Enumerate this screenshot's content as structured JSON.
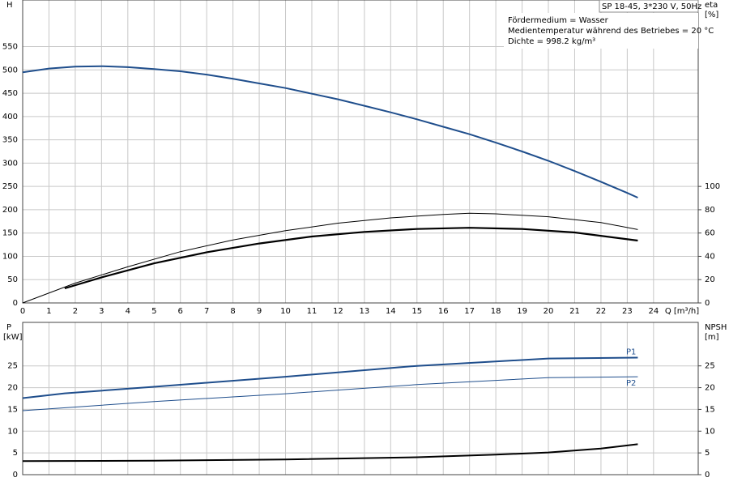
{
  "chart_data": [
    {
      "type": "line",
      "info_title": "SP 18-45, 3*230 V, 50Hz",
      "info_lines": [
        "Fördermedium = Wasser",
        "Medientemperatur während des Betriebes = 20 °C",
        "Dichte = 998.2 kg/m³"
      ],
      "ylabel": "H",
      "y2label": "eta",
      "y2unit": "[%]",
      "xlabel": "Q [m³/h]",
      "xlim": [
        0,
        25.7
      ],
      "xticks": [
        0,
        1,
        2,
        3,
        4,
        5,
        6,
        7,
        8,
        9,
        10,
        11,
        12,
        13,
        14,
        15,
        16,
        17,
        18,
        19,
        20,
        21,
        22,
        23,
        24
      ],
      "show_xtick_labels": true,
      "ylim": [
        0,
        650
      ],
      "yticks": [
        0,
        50,
        100,
        150,
        200,
        250,
        300,
        350,
        400,
        450,
        500,
        550
      ],
      "y2lim": [
        0,
        260
      ],
      "y2ticks": [
        0,
        20,
        40,
        60,
        80,
        100
      ],
      "grid": true,
      "series": [
        {
          "color": "#1f4e8c",
          "linewidth": 2,
          "axis": "y",
          "x": [
            0,
            1,
            2,
            3,
            4,
            5,
            6,
            7,
            8,
            9,
            10,
            11,
            12,
            13,
            14,
            15,
            16,
            17,
            18,
            19,
            20,
            21,
            22,
            23,
            23.4
          ],
          "values": [
            495,
            503,
            507,
            508,
            506,
            502,
            497,
            490,
            481,
            471,
            461,
            449,
            437,
            423,
            409,
            394,
            378,
            362,
            344,
            325,
            305,
            283,
            260,
            236,
            226
          ]
        },
        {
          "color": "#000000",
          "linewidth": 1,
          "axis": "y2",
          "x": [
            0,
            2,
            4,
            6,
            8,
            10,
            12,
            14,
            16,
            17,
            18,
            20,
            22,
            23.4
          ],
          "values": [
            0,
            17,
            31,
            44,
            54,
            62,
            68.5,
            73,
            76,
            77,
            76.5,
            74,
            69,
            63
          ]
        },
        {
          "color": "#000000",
          "linewidth": 2.2,
          "axis": "y2",
          "x": [
            1.6,
            3,
            5,
            7,
            9,
            11,
            13,
            15,
            17,
            19,
            21,
            23.4
          ],
          "values": [
            12.5,
            22,
            34,
            43.5,
            51,
            57,
            61,
            63.5,
            64.5,
            63.5,
            60.5,
            53.5
          ]
        }
      ]
    },
    {
      "type": "line",
      "ylabel": "P",
      "yunit": "[kW]",
      "y2label": "NPSH",
      "y2unit": "[m]",
      "xlim": [
        0,
        25.7
      ],
      "xticks": [
        0,
        1,
        2,
        3,
        4,
        5,
        6,
        7,
        8,
        9,
        10,
        11,
        12,
        13,
        14,
        15,
        16,
        17,
        18,
        19,
        20,
        21,
        22,
        23,
        24
      ],
      "show_xtick_labels": false,
      "ylim": [
        0,
        35
      ],
      "yticks": [
        0,
        5,
        10,
        15,
        20,
        25
      ],
      "y2lim": [
        0,
        35
      ],
      "y2ticks": [
        0,
        5,
        10,
        15,
        20,
        25
      ],
      "grid": true,
      "series": [
        {
          "name": "P1",
          "color": "#1f4e8c",
          "linewidth": 2,
          "axis": "y",
          "x": [
            0,
            1.6,
            5,
            10,
            15,
            20,
            23.4
          ],
          "values": [
            17.6,
            18.7,
            20.2,
            22.5,
            25,
            26.7,
            26.9
          ]
        },
        {
          "name": "P2",
          "color": "#1f4e8c",
          "linewidth": 1,
          "axis": "y",
          "x": [
            0,
            5,
            10,
            15,
            20,
            23.4
          ],
          "values": [
            14.7,
            16.8,
            18.6,
            20.7,
            22.3,
            22.5
          ]
        },
        {
          "color": "#000000",
          "linewidth": 2,
          "axis": "y2",
          "x": [
            0,
            5,
            10,
            15,
            18,
            20,
            22,
            23.4
          ],
          "values": [
            3.1,
            3.2,
            3.5,
            4,
            4.6,
            5.1,
            6,
            7
          ]
        }
      ]
    }
  ]
}
